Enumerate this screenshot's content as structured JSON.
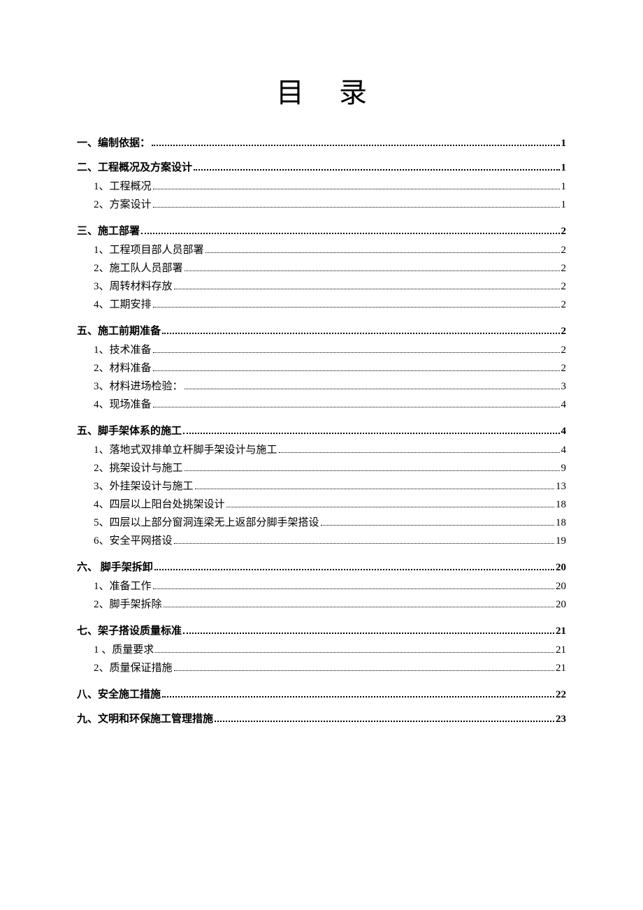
{
  "title": "目录",
  "entries": [
    {
      "level": 1,
      "label": "一、编制依据：",
      "page": "1"
    },
    {
      "level": 1,
      "label": "二、工程概况及方案设计",
      "page": "1"
    },
    {
      "level": 2,
      "label": "1、工程概况",
      "page": "1"
    },
    {
      "level": 2,
      "label": "2、方案设计",
      "page": "1"
    },
    {
      "level": 1,
      "label": "三、施工部署",
      "page": "2"
    },
    {
      "level": 2,
      "label": "1、工程项目部人员部署",
      "page": "2"
    },
    {
      "level": 2,
      "label": "2、施工队人员部署",
      "page": "2"
    },
    {
      "level": 2,
      "label": "3、周转材料存放",
      "page": "2"
    },
    {
      "level": 2,
      "label": "4、工期安排",
      "page": "2"
    },
    {
      "level": 1,
      "label": "五、施工前期准备",
      "page": "2"
    },
    {
      "level": 2,
      "label": "1、技术准备",
      "page": "2"
    },
    {
      "level": 2,
      "label": "2、材料准备",
      "page": "2"
    },
    {
      "level": 2,
      "label": "3、材料进场检验：",
      "page": "3"
    },
    {
      "level": 2,
      "label": "4、现场准备",
      "page": "4"
    },
    {
      "level": 1,
      "label": "五、脚手架体系的施工",
      "page": "4"
    },
    {
      "level": 2,
      "label": "1、落地式双排单立杆脚手架设计与施工",
      "page": "4"
    },
    {
      "level": 2,
      "label": "2、挑架设计与施工",
      "page": "9"
    },
    {
      "level": 2,
      "label": "3、外挂架设计与施工",
      "page": "13"
    },
    {
      "level": 2,
      "label": "4、四层以上阳台处挑架设计",
      "page": "18"
    },
    {
      "level": 2,
      "label": "5、四层以上部分窗洞连梁无上返部分脚手架搭设",
      "page": "18"
    },
    {
      "level": 2,
      "label": "6、安全平网搭设",
      "page": "19"
    },
    {
      "level": 1,
      "label": "六、 脚手架拆卸",
      "page": "20"
    },
    {
      "level": 2,
      "label": "1、准备工作",
      "page": "20"
    },
    {
      "level": 2,
      "label": "2、脚手架拆除",
      "page": "20"
    },
    {
      "level": 1,
      "label": "七、架子搭设质量标准",
      "page": "21"
    },
    {
      "level": 2,
      "label": "1 、质量要求",
      "page": "21"
    },
    {
      "level": 2,
      "label": "2、质量保证措施",
      "page": "21"
    },
    {
      "level": 1,
      "label": "八、安全施工措施",
      "page": "22"
    },
    {
      "level": 1,
      "label": "九、文明和环保施工管理措施",
      "page": "23"
    }
  ],
  "colors": {
    "text": "#000000",
    "background": "#ffffff",
    "dots": "#000000"
  },
  "typography": {
    "title_fontsize": 40,
    "level1_fontsize": 15,
    "level2_fontsize": 15,
    "font_family": "SimSun"
  }
}
